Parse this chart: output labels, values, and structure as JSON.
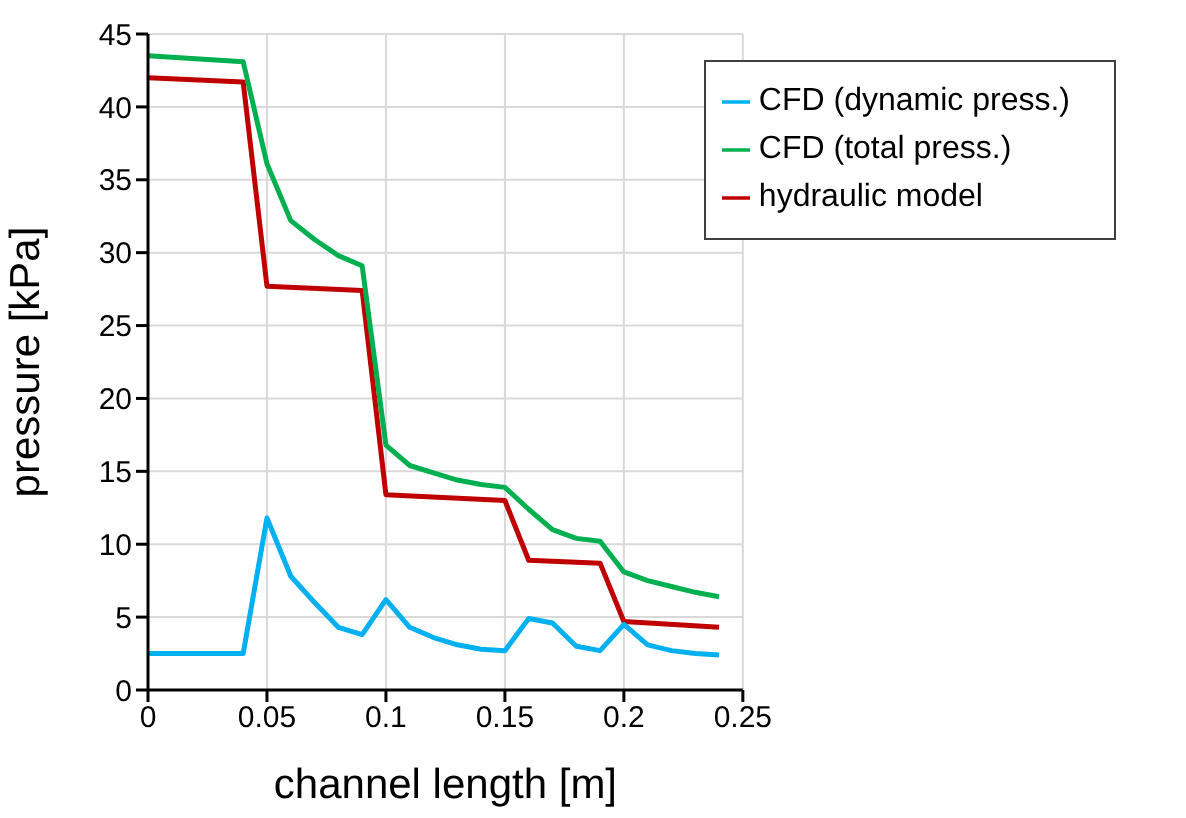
{
  "chart_data": {
    "type": "line",
    "xlabel": "channel length [m]",
    "ylabel": "pressure [kPa]",
    "xlim": [
      0,
      0.25
    ],
    "xticks": [
      0,
      0.05,
      0.1,
      0.15,
      0.2,
      0.25
    ],
    "ylim": [
      0,
      45
    ],
    "yticks": [
      0,
      5,
      10,
      15,
      20,
      25,
      30,
      35,
      40,
      45
    ],
    "grid": true,
    "legend": "top right",
    "marker": "none",
    "line_style": "solid",
    "series": [
      {
        "name": "hydraulic model",
        "color": "#c00000",
        "x": [
          0,
          0.04,
          0.05,
          0.09,
          0.1,
          0.15,
          0.16,
          0.19,
          0.2,
          0.24
        ],
        "values": [
          42,
          41.7,
          27.7,
          27.4,
          13.4,
          13.0,
          8.9,
          8.7,
          4.7,
          4.3
        ]
      },
      {
        "name": "CFD (total press.)",
        "color": "#00b050",
        "x": [
          0,
          0.04,
          0.05,
          0.06,
          0.07,
          0.08,
          0.09,
          0.1,
          0.11,
          0.12,
          0.13,
          0.14,
          0.15,
          0.16,
          0.17,
          0.18,
          0.19,
          0.2,
          0.21,
          0.22,
          0.23,
          0.24
        ],
        "values": [
          43.5,
          43.1,
          36.1,
          32.2,
          30.9,
          29.8,
          29.1,
          16.8,
          15.4,
          14.9,
          14.4,
          14.1,
          13.9,
          12.4,
          11.0,
          10.4,
          10.2,
          8.1,
          7.5,
          7.1,
          6.7,
          6.4
        ]
      },
      {
        "name": "CFD (dynamic press.)",
        "color": "#00b0f0",
        "x": [
          0,
          0.04,
          0.05,
          0.06,
          0.07,
          0.08,
          0.09,
          0.1,
          0.11,
          0.12,
          0.13,
          0.14,
          0.15,
          0.16,
          0.17,
          0.18,
          0.19,
          0.2,
          0.21,
          0.22,
          0.23,
          0.24
        ],
        "values": [
          2.5,
          2.5,
          11.8,
          7.8,
          6.0,
          4.3,
          3.8,
          6.2,
          4.3,
          3.6,
          3.1,
          2.8,
          2.7,
          4.9,
          4.6,
          3.0,
          2.7,
          4.5,
          3.1,
          2.7,
          2.5,
          2.4
        ]
      }
    ]
  }
}
